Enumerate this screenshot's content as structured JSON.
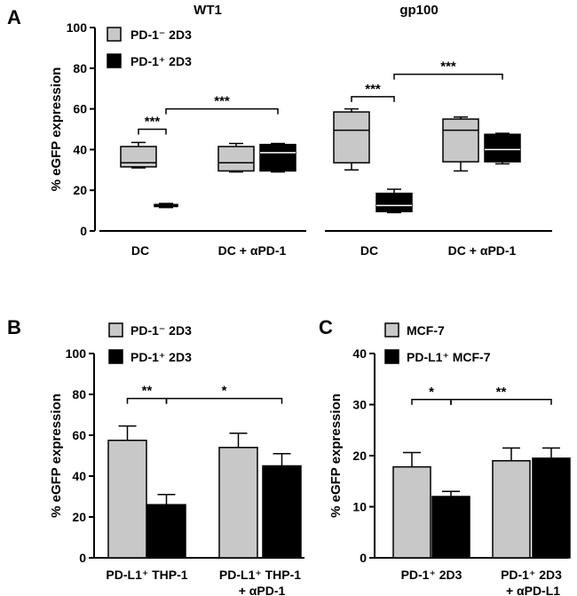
{
  "chart_data": [
    {
      "panel": "A",
      "type": "box",
      "ylabel": "% eGFP expression",
      "ylim": [
        0,
        100
      ],
      "yticks": [
        0,
        20,
        40,
        60,
        80,
        100
      ],
      "legend": [
        {
          "label": "PD-1⁻ 2D3",
          "color": "#c8c8c8"
        },
        {
          "label": "PD-1⁺ 2D3",
          "color": "#000000"
        }
      ],
      "groups": [
        {
          "title": "WT1",
          "categories": [
            "DC",
            "DC + αPD-1"
          ],
          "boxes": [
            {
              "category": "DC",
              "series": "PD-1⁻ 2D3",
              "min": 31,
              "q1": 31.5,
              "median": 33.5,
              "q3": 41.5,
              "max": 43.5
            },
            {
              "category": "DC",
              "series": "PD-1⁺ 2D3",
              "min": 11.5,
              "q1": 12,
              "median": 12.5,
              "q3": 13,
              "max": 13.5
            },
            {
              "category": "DC + αPD-1",
              "series": "PD-1⁻ 2D3",
              "min": 29,
              "q1": 29.5,
              "median": 33.5,
              "q3": 41.5,
              "max": 43
            },
            {
              "category": "DC + αPD-1",
              "series": "PD-1⁺ 2D3",
              "min": 29,
              "q1": 29.5,
              "median": 38.5,
              "q3": 42.5,
              "max": 43
            }
          ],
          "significance": [
            {
              "label": "***",
              "from": "DC:PD-1⁻ 2D3",
              "to": "DC:PD-1⁺ 2D3",
              "level": 50
            },
            {
              "label": "***",
              "from": "DC:PD-1⁺ 2D3",
              "to": "DC + αPD-1:PD-1⁺ 2D3",
              "level": 60
            }
          ]
        },
        {
          "title": "gp100",
          "categories": [
            "DC",
            "DC + αPD-1"
          ],
          "boxes": [
            {
              "category": "DC",
              "series": "PD-1⁻ 2D3",
              "min": 30,
              "q1": 33.5,
              "median": 49.5,
              "q3": 58.5,
              "max": 60
            },
            {
              "category": "DC",
              "series": "PD-1⁺ 2D3",
              "min": 9,
              "q1": 9.5,
              "median": 12.5,
              "q3": 18.5,
              "max": 20.5
            },
            {
              "category": "DC + αPD-1",
              "series": "PD-1⁻ 2D3",
              "min": 29.5,
              "q1": 34,
              "median": 49.5,
              "q3": 55,
              "max": 56
            },
            {
              "category": "DC + αPD-1",
              "series": "PD-1⁺ 2D3",
              "min": 33,
              "q1": 34,
              "median": 40,
              "q3": 47.5,
              "max": 48
            }
          ],
          "significance": [
            {
              "label": "***",
              "from": "DC:PD-1⁻ 2D3",
              "to": "DC:PD-1⁺ 2D3",
              "level": 66
            },
            {
              "label": "***",
              "from": "DC:PD-1⁺ 2D3",
              "to": "DC + αPD-1:PD-1⁺ 2D3",
              "level": 77
            }
          ]
        }
      ]
    },
    {
      "panel": "B",
      "type": "bar",
      "ylabel": "% eGFP expression",
      "ylim": [
        0,
        100
      ],
      "yticks": [
        0,
        20,
        40,
        60,
        80,
        100
      ],
      "legend": [
        {
          "label": "PD-1⁻ 2D3",
          "color": "#c8c8c8"
        },
        {
          "label": "PD-1⁺ 2D3",
          "color": "#000000"
        }
      ],
      "categories": [
        "PD-L1⁺ THP-1",
        "PD-L1⁺ THP-1 + αPD-1"
      ],
      "series": [
        {
          "name": "PD-1⁻ 2D3",
          "values": [
            57.5,
            54
          ],
          "errors": [
            7,
            7
          ]
        },
        {
          "name": "PD-1⁺ 2D3",
          "values": [
            26,
            45
          ],
          "errors": [
            5,
            6
          ]
        }
      ],
      "significance": [
        {
          "label": "**",
          "level": 78
        },
        {
          "label": "*",
          "level": 78
        }
      ]
    },
    {
      "panel": "C",
      "type": "bar",
      "ylabel": "% eGFP expression",
      "ylim": [
        0,
        40
      ],
      "yticks": [
        0,
        10,
        20,
        30,
        40
      ],
      "legend": [
        {
          "label": "MCF-7",
          "color": "#c8c8c8"
        },
        {
          "label": "PD-L1⁺ MCF-7",
          "color": "#000000"
        }
      ],
      "categories": [
        "PD-1⁺ 2D3",
        "PD-1⁺ 2D3 + αPD-L1"
      ],
      "series": [
        {
          "name": "MCF-7",
          "values": [
            17.8,
            19
          ],
          "errors": [
            2.8,
            2.5
          ]
        },
        {
          "name": "PD-L1⁺ MCF-7",
          "values": [
            12,
            19.5
          ],
          "errors": [
            1,
            2
          ]
        }
      ],
      "significance": [
        {
          "label": "*",
          "level": 31
        },
        {
          "label": "**",
          "level": 31
        }
      ]
    }
  ]
}
